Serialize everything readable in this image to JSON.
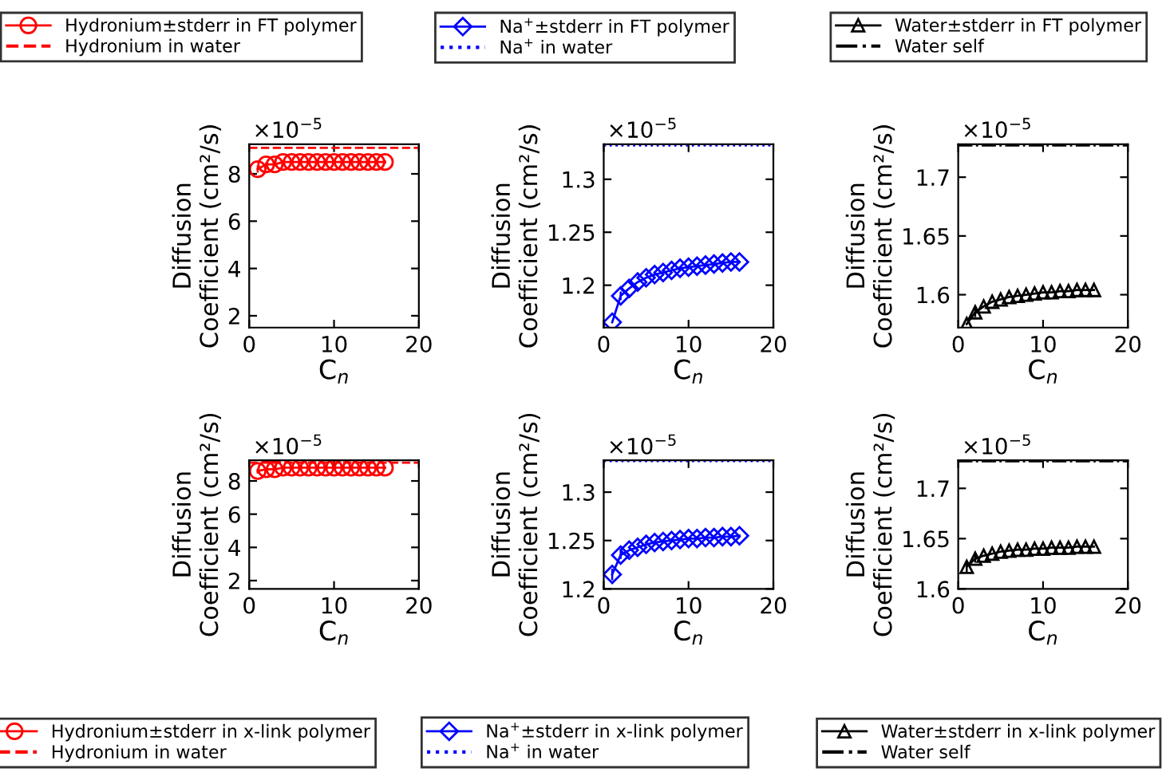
{
  "chart_data": [
    {
      "type": "line",
      "ylabel": "Diffusion\nCoefficient (cm²/s)",
      "xlabel": "C$_{n}$",
      "annotations": [
        "×10$^{−5}$"
      ],
      "legend": "top",
      "grid": false,
      "xlim": [
        0,
        20
      ],
      "xticks": [
        0,
        10,
        20
      ],
      "ylim": [
        1.5,
        9.25
      ],
      "yticks": [
        2,
        4,
        6,
        8
      ],
      "x": [
        1,
        2,
        3,
        4,
        5,
        6,
        7,
        8,
        9,
        10,
        11,
        12,
        13,
        14,
        15,
        16
      ],
      "series": [
        {
          "name": "Hydronium±stderr in FT polymer",
          "color": "#ff0000",
          "marker": "circle",
          "line_style": "solid",
          "values": [
            8.2,
            8.4,
            8.4,
            8.5,
            8.5,
            8.5,
            8.5,
            8.5,
            8.5,
            8.5,
            8.5,
            8.5,
            8.5,
            8.5,
            8.5,
            8.5
          ],
          "errors": [
            0.15,
            0.1,
            0.08,
            0.08,
            0.08,
            0.08,
            0.08,
            0.08,
            0.08,
            0.08,
            0.08,
            0.08,
            0.08,
            0.08,
            0.08,
            0.08
          ]
        }
      ],
      "ref_lines": [
        {
          "axis": "y",
          "value": 9.1,
          "label": "Hydronium in water",
          "color": "#ff0000",
          "line_style": "dashed"
        }
      ]
    },
    {
      "type": "line",
      "ylabel": "Diffusion\nCoefficient (cm²/s)",
      "xlabel": "C$_{n}$",
      "annotations": [
        "×10$^{−5}$"
      ],
      "legend": "top",
      "grid": false,
      "xlim": [
        0,
        20
      ],
      "xticks": [
        0,
        10,
        20
      ],
      "ylim": [
        1.16,
        1.333
      ],
      "yticks": [
        1.2,
        1.25,
        1.3
      ],
      "x": [
        1,
        2,
        3,
        4,
        5,
        6,
        7,
        8,
        9,
        10,
        11,
        12,
        13,
        14,
        15,
        16
      ],
      "series": [
        {
          "name": "Na$^{+}$±stderr in FT polymer",
          "color": "#0000ff",
          "marker": "diamond",
          "line_style": "solid",
          "values": [
            1.165,
            1.19,
            1.197,
            1.203,
            1.207,
            1.21,
            1.212,
            1.214,
            1.216,
            1.217,
            1.218,
            1.219,
            1.22,
            1.221,
            1.222,
            1.222
          ],
          "errors": [
            null,
            0.004,
            null,
            null,
            null,
            null,
            null,
            null,
            null,
            null,
            null,
            null,
            null,
            null,
            null,
            null
          ]
        }
      ],
      "ref_lines": [
        {
          "axis": "y",
          "value": 1.332,
          "label": "Na$^{+}$ in water",
          "color": "#0000ff",
          "line_style": "dotted"
        }
      ]
    },
    {
      "type": "line",
      "ylabel": "Diffusion\nCoefficient (cm²/s)",
      "xlabel": "C$_{n}$",
      "annotations": [
        "×10$^{−5}$"
      ],
      "legend": "top",
      "grid": false,
      "xlim": [
        0,
        20
      ],
      "xticks": [
        0,
        10,
        20
      ],
      "ylim": [
        1.572,
        1.728
      ],
      "yticks": [
        1.6,
        1.65,
        1.7
      ],
      "x": [
        1,
        2,
        3,
        4,
        5,
        6,
        7,
        8,
        9,
        10,
        11,
        12,
        13,
        14,
        15,
        16
      ],
      "series": [
        {
          "name": "Water±stderr in FT polymer",
          "color": "#000000",
          "marker": "triangle",
          "line_style": "solid",
          "values": [
            1.575,
            1.585,
            1.59,
            1.594,
            1.596,
            1.598,
            1.599,
            1.6,
            1.601,
            1.602,
            1.602,
            1.603,
            1.603,
            1.604,
            1.604,
            1.604
          ],
          "errors": [
            null,
            0.004,
            null,
            null,
            null,
            null,
            null,
            null,
            null,
            null,
            null,
            null,
            null,
            null,
            null,
            null
          ]
        }
      ],
      "ref_lines": [
        {
          "axis": "y",
          "value": 1.727,
          "label": "Water self",
          "color": "#000000",
          "line_style": "dashdot"
        }
      ]
    },
    {
      "type": "line",
      "ylabel": "Diffusion\nCoefficient (cm²/s)",
      "xlabel": "C$_{n}$",
      "annotations": [
        "×10$^{−5}$"
      ],
      "legend": "bottom",
      "grid": false,
      "xlim": [
        0,
        20
      ],
      "xticks": [
        0,
        10,
        20
      ],
      "ylim": [
        1.5,
        9.25
      ],
      "yticks": [
        2,
        4,
        6,
        8
      ],
      "x": [
        1,
        2,
        3,
        4,
        5,
        6,
        7,
        8,
        9,
        10,
        11,
        12,
        13,
        14,
        15,
        16
      ],
      "series": [
        {
          "name": "Hydronium±stderr in x-link polymer",
          "color": "#ff0000",
          "marker": "circle",
          "line_style": "solid",
          "values": [
            8.6,
            8.7,
            8.7,
            8.8,
            8.8,
            8.8,
            8.8,
            8.8,
            8.8,
            8.8,
            8.8,
            8.8,
            8.8,
            8.8,
            8.8,
            8.8
          ],
          "errors": [
            0.15,
            0.1,
            0.08,
            0.08,
            0.08,
            0.08,
            0.08,
            0.08,
            0.08,
            0.08,
            0.08,
            0.08,
            0.08,
            0.08,
            0.08,
            0.08
          ]
        }
      ],
      "ref_lines": [
        {
          "axis": "y",
          "value": 9.1,
          "label": "Hydronium in water",
          "color": "#ff0000",
          "line_style": "dashed"
        }
      ]
    },
    {
      "type": "line",
      "ylabel": "Diffusion\nCoefficient (cm²/s)",
      "xlabel": "C$_{n}$",
      "annotations": [
        "×10$^{−5}$"
      ],
      "legend": "bottom",
      "grid": false,
      "xlim": [
        0,
        20
      ],
      "xticks": [
        0,
        10,
        20
      ],
      "ylim": [
        1.2,
        1.333
      ],
      "yticks": [
        1.2,
        1.25,
        1.3
      ],
      "x": [
        1,
        2,
        3,
        4,
        5,
        6,
        7,
        8,
        9,
        10,
        11,
        12,
        13,
        14,
        15,
        16
      ],
      "series": [
        {
          "name": "Na$^{+}$±stderr in x-link polymer",
          "color": "#0000ff",
          "marker": "diamond",
          "line_style": "solid",
          "values": [
            1.215,
            1.235,
            1.24,
            1.243,
            1.246,
            1.248,
            1.249,
            1.25,
            1.251,
            1.252,
            1.252,
            1.253,
            1.253,
            1.254,
            1.254,
            1.255
          ],
          "errors": [
            0.006,
            0.004,
            null,
            null,
            null,
            null,
            null,
            null,
            null,
            null,
            null,
            null,
            null,
            null,
            null,
            null
          ]
        }
      ],
      "ref_lines": [
        {
          "axis": "y",
          "value": 1.332,
          "label": "Na$^{+}$ in water",
          "color": "#0000ff",
          "line_style": "dotted"
        }
      ]
    },
    {
      "type": "line",
      "ylabel": "Diffusion\nCoefficient (cm²/s)",
      "xlabel": "C$_{n}$",
      "annotations": [
        "×10$^{−5}$"
      ],
      "legend": "bottom",
      "grid": false,
      "xlim": [
        0,
        20
      ],
      "xticks": [
        0,
        10,
        20
      ],
      "ylim": [
        1.6,
        1.728
      ],
      "yticks": [
        1.6,
        1.65,
        1.7
      ],
      "x": [
        1,
        2,
        3,
        4,
        5,
        6,
        7,
        8,
        9,
        10,
        11,
        12,
        13,
        14,
        15,
        16
      ],
      "series": [
        {
          "name": "Water±stderr in x-link polymer",
          "color": "#000000",
          "marker": "triangle",
          "line_style": "solid",
          "values": [
            1.622,
            1.63,
            1.633,
            1.635,
            1.637,
            1.638,
            1.639,
            1.639,
            1.64,
            1.64,
            1.641,
            1.641,
            1.641,
            1.642,
            1.642,
            1.642
          ],
          "errors": [
            0.006,
            0.004,
            null,
            null,
            null,
            null,
            null,
            null,
            null,
            null,
            null,
            null,
            null,
            null,
            null,
            null
          ]
        }
      ],
      "ref_lines": [
        {
          "axis": "y",
          "value": 1.727,
          "label": "Water self",
          "color": "#000000",
          "line_style": "dashdot"
        }
      ]
    }
  ]
}
